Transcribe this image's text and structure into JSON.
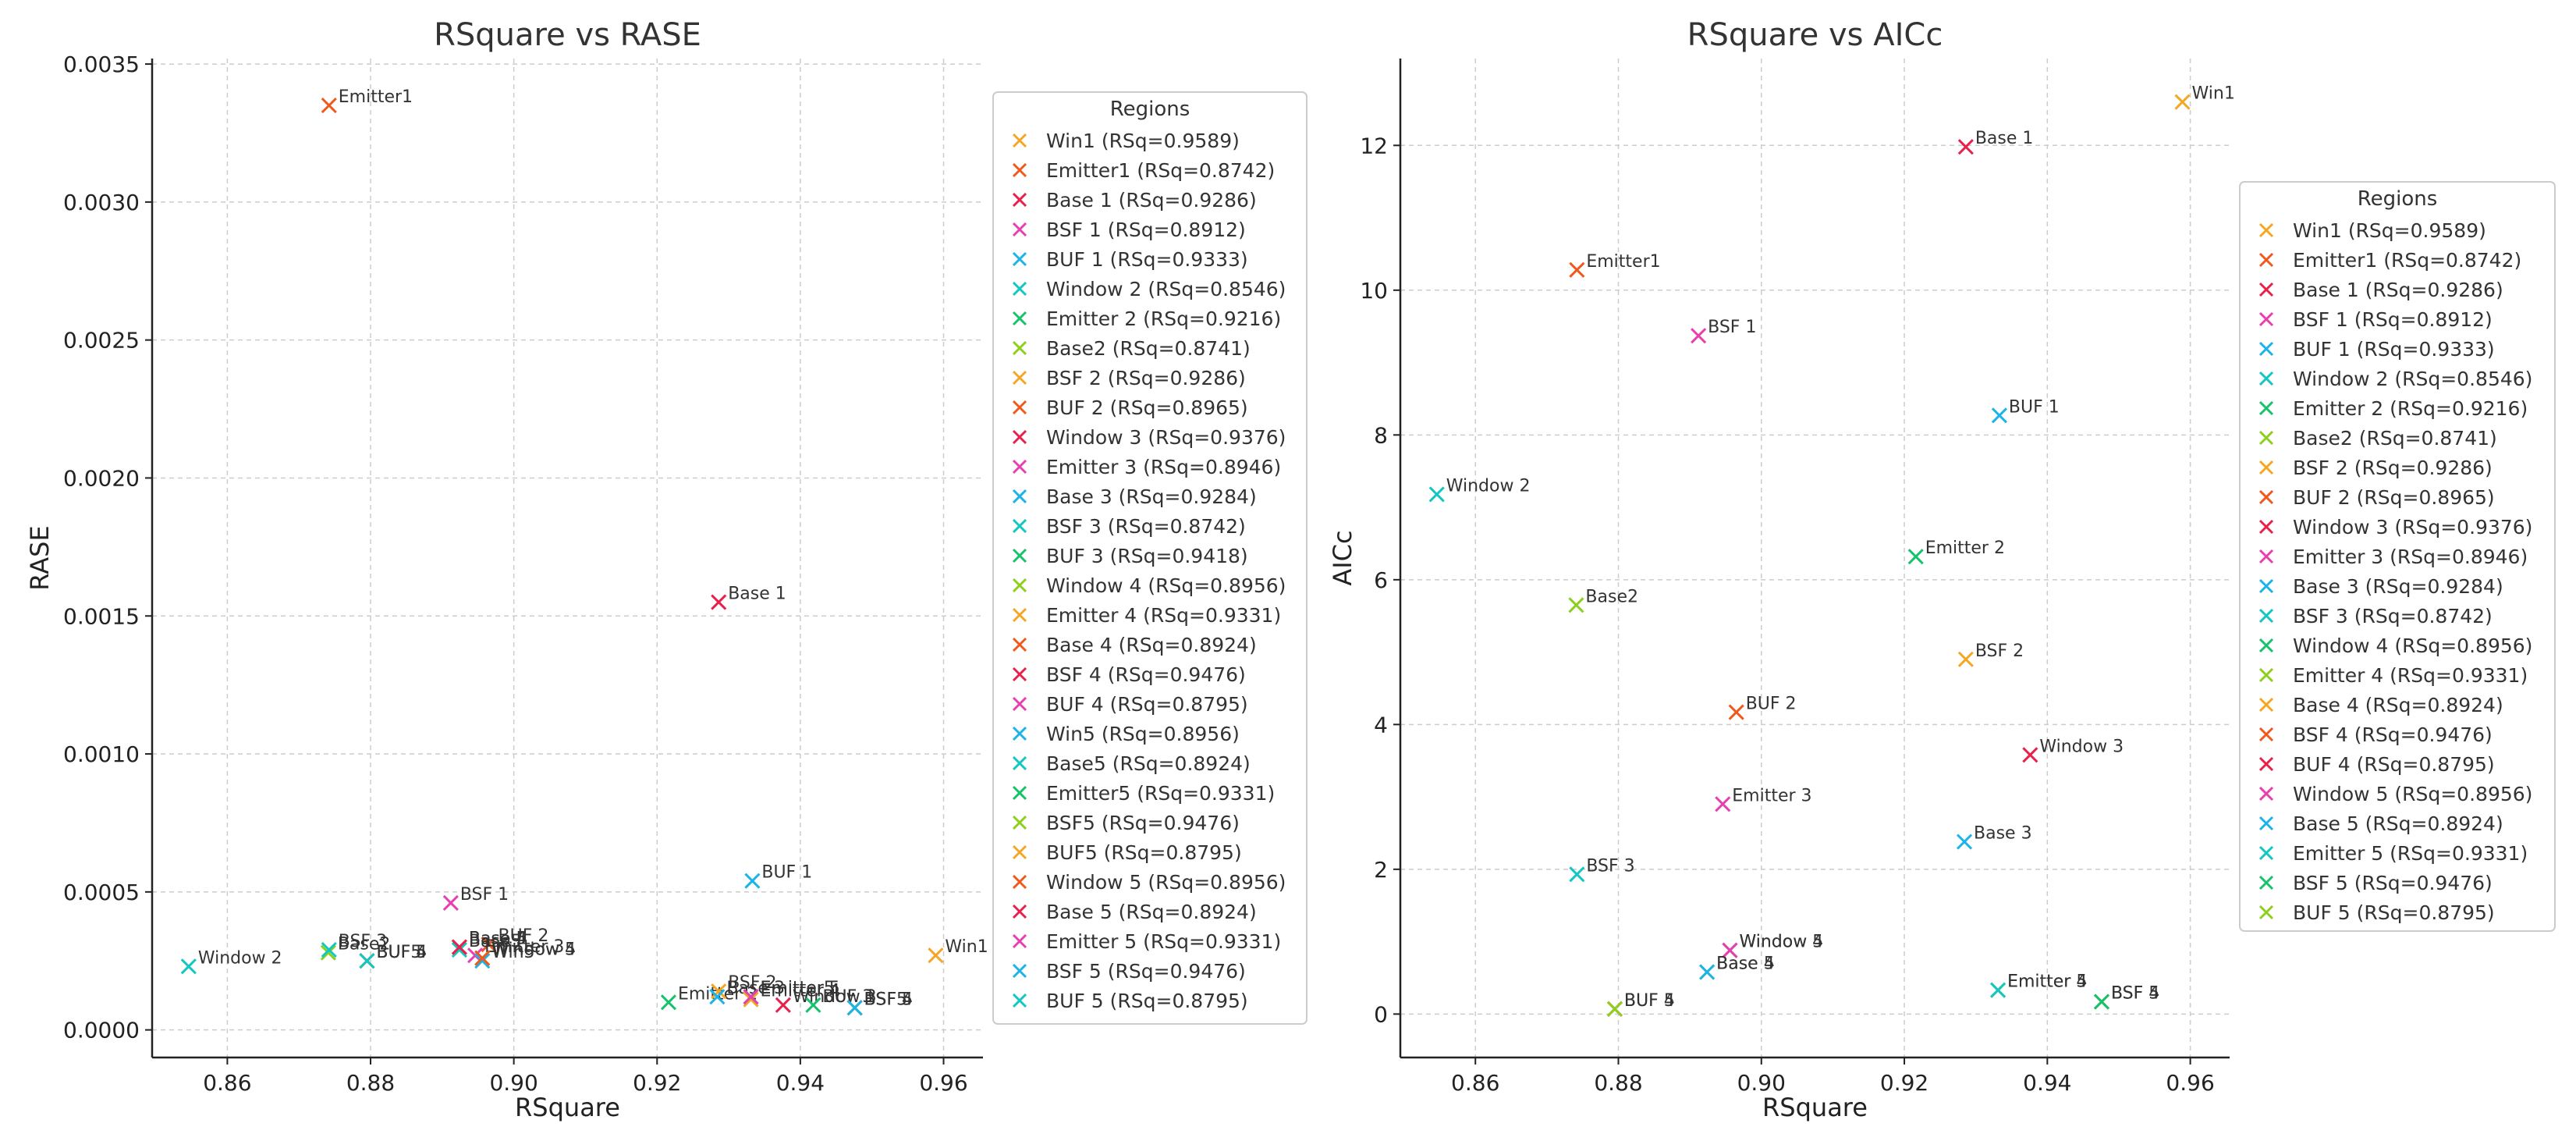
{
  "colors": [
    "#f5a623",
    "#f0581c",
    "#e8204a",
    "#e83fb0",
    "#1cb4e8",
    "#12c7c0",
    "#14c36a",
    "#8ccf1c"
  ],
  "chart_data": [
    {
      "type": "scatter",
      "title": "RSquare vs RASE",
      "xlabel": "RSquare",
      "ylabel": "RASE",
      "xlim": [
        0.8495,
        0.9655
      ],
      "ylim": [
        -0.0001,
        0.00352
      ],
      "xticks": [
        0.86,
        0.88,
        0.9,
        0.92,
        0.94,
        0.96
      ],
      "xtick_labels": [
        "0.86",
        "0.88",
        "0.90",
        "0.92",
        "0.94",
        "0.96"
      ],
      "yticks": [
        0.0,
        0.0005,
        0.001,
        0.0015,
        0.002,
        0.0025,
        0.003,
        0.0035
      ],
      "ytick_labels": [
        "0.0000",
        "0.0005",
        "0.0010",
        "0.0015",
        "0.0020",
        "0.0025",
        "0.0030",
        "0.0035"
      ],
      "grid": true,
      "legend_title": "Regions",
      "legend_position": "right",
      "points": [
        {
          "name": "Win1",
          "x": 0.9589,
          "y": 0.00027,
          "legend": "Win1 (RSq=0.9589)",
          "color": 0
        },
        {
          "name": "Emitter1",
          "x": 0.8742,
          "y": 0.00335,
          "legend": "Emitter1 (RSq=0.8742)",
          "color": 1
        },
        {
          "name": "Base 1",
          "x": 0.9286,
          "y": 0.00155,
          "legend": "Base 1 (RSq=0.9286)",
          "color": 2
        },
        {
          "name": "BSF 1",
          "x": 0.8912,
          "y": 0.00046,
          "legend": "BSF 1 (RSq=0.8912)",
          "color": 3
        },
        {
          "name": "BUF 1",
          "x": 0.9333,
          "y": 0.00054,
          "legend": "BUF 1 (RSq=0.9333)",
          "color": 4
        },
        {
          "name": "Window 2",
          "x": 0.8546,
          "y": 0.00023,
          "legend": "Window 2 (RSq=0.8546)",
          "color": 5
        },
        {
          "name": "Emitter 2",
          "x": 0.9216,
          "y": 0.0001,
          "legend": "Emitter 2 (RSq=0.9216)",
          "color": 6
        },
        {
          "name": "Base2",
          "x": 0.8741,
          "y": 0.00028,
          "legend": "Base2 (RSq=0.8741)",
          "color": 7
        },
        {
          "name": "BSF 2",
          "x": 0.9286,
          "y": 0.00014,
          "legend": "BSF 2 (RSq=0.9286)",
          "color": 0
        },
        {
          "name": "BUF 2",
          "x": 0.8965,
          "y": 0.00031,
          "legend": "BUF 2 (RSq=0.8965)",
          "color": 1
        },
        {
          "name": "Window 3",
          "x": 0.9376,
          "y": 9e-05,
          "legend": "Window 3 (RSq=0.9376)",
          "color": 2
        },
        {
          "name": "Emitter 3",
          "x": 0.8946,
          "y": 0.00027,
          "legend": "Emitter 3 (RSq=0.8946)",
          "color": 3
        },
        {
          "name": "Base 3",
          "x": 0.9284,
          "y": 0.00012,
          "legend": "Base 3 (RSq=0.9284)",
          "color": 4
        },
        {
          "name": "BSF 3",
          "x": 0.8742,
          "y": 0.00029,
          "legend": "BSF 3 (RSq=0.8742)",
          "color": 5
        },
        {
          "name": "BUF 3",
          "x": 0.9418,
          "y": 9e-05,
          "legend": "BUF 3 (RSq=0.9418)",
          "color": 6
        },
        {
          "name": "Window 4",
          "x": 0.8956,
          "y": 0.00026,
          "legend": "Window 4 (RSq=0.8956)",
          "color": 7
        },
        {
          "name": "Emitter 4",
          "x": 0.9331,
          "y": 0.00011,
          "legend": "Emitter 4 (RSq=0.9331)",
          "color": 0
        },
        {
          "name": "Base 4",
          "x": 0.8924,
          "y": 0.0003,
          "legend": "Base 4 (RSq=0.8924)",
          "color": 1
        },
        {
          "name": "BSF 4",
          "x": 0.9476,
          "y": 8e-05,
          "legend": "BSF 4 (RSq=0.9476)",
          "color": 2
        },
        {
          "name": "BUF 4",
          "x": 0.8795,
          "y": 0.00025,
          "legend": "BUF 4 (RSq=0.8795)",
          "color": 3
        },
        {
          "name": "Win5",
          "x": 0.8956,
          "y": 0.00025,
          "legend": "Win5 (RSq=0.8956)",
          "color": 4
        },
        {
          "name": "Base5",
          "x": 0.8924,
          "y": 0.00029,
          "legend": "Base5 (RSq=0.8924)",
          "color": 5
        },
        {
          "name": "Emitter5",
          "x": 0.9331,
          "y": 0.00012,
          "legend": "Emitter5 (RSq=0.9331)",
          "color": 6
        },
        {
          "name": "BSF5",
          "x": 0.9476,
          "y": 8e-05,
          "legend": "BSF5 (RSq=0.9476)",
          "color": 7
        },
        {
          "name": "BUF5",
          "x": 0.8795,
          "y": 0.00025,
          "legend": "BUF5 (RSq=0.8795)",
          "color": 0
        },
        {
          "name": "Window 5",
          "x": 0.8956,
          "y": 0.00026,
          "legend": "Window 5 (RSq=0.8956)",
          "color": 1
        },
        {
          "name": "Base 5",
          "x": 0.8924,
          "y": 0.0003,
          "legend": "Base 5 (RSq=0.8924)",
          "color": 2
        },
        {
          "name": "Emitter 5",
          "x": 0.9331,
          "y": 0.00012,
          "legend": "Emitter 5 (RSq=0.9331)",
          "color": 3
        },
        {
          "name": "BSF 5",
          "x": 0.9476,
          "y": 8e-05,
          "legend": "BSF 5 (RSq=0.9476)",
          "color": 4
        },
        {
          "name": "BUF 5",
          "x": 0.8795,
          "y": 0.00025,
          "legend": "BUF 5 (RSq=0.8795)",
          "color": 5
        }
      ]
    },
    {
      "type": "scatter",
      "title": "RSquare vs AICc",
      "xlabel": "RSquare",
      "ylabel": "AICc",
      "xlim": [
        0.8495,
        0.9655
      ],
      "ylim": [
        -0.6,
        13.2
      ],
      "xticks": [
        0.86,
        0.88,
        0.9,
        0.92,
        0.94,
        0.96
      ],
      "xtick_labels": [
        "0.86",
        "0.88",
        "0.90",
        "0.92",
        "0.94",
        "0.96"
      ],
      "yticks": [
        0,
        2,
        4,
        6,
        8,
        10,
        12
      ],
      "ytick_labels": [
        "0",
        "2",
        "4",
        "6",
        "8",
        "10",
        "12"
      ],
      "grid": true,
      "legend_title": "Regions",
      "legend_position": "right",
      "points": [
        {
          "name": "Win1",
          "x": 0.9589,
          "y": 12.6,
          "legend": "Win1 (RSq=0.9589)",
          "color": 0
        },
        {
          "name": "Emitter1",
          "x": 0.8742,
          "y": 10.28,
          "legend": "Emitter1 (RSq=0.8742)",
          "color": 1
        },
        {
          "name": "Base 1",
          "x": 0.9286,
          "y": 11.98,
          "legend": "Base 1 (RSq=0.9286)",
          "color": 2
        },
        {
          "name": "BSF 1",
          "x": 0.8912,
          "y": 9.37,
          "legend": "BSF 1 (RSq=0.8912)",
          "color": 3
        },
        {
          "name": "BUF 1",
          "x": 0.9333,
          "y": 8.27,
          "legend": "BUF 1 (RSq=0.9333)",
          "color": 4
        },
        {
          "name": "Window 2",
          "x": 0.8546,
          "y": 7.18,
          "legend": "Window 2 (RSq=0.8546)",
          "color": 5
        },
        {
          "name": "Emitter 2",
          "x": 0.9216,
          "y": 6.32,
          "legend": "Emitter 2 (RSq=0.9216)",
          "color": 6
        },
        {
          "name": "Base2",
          "x": 0.8741,
          "y": 5.65,
          "legend": "Base2 (RSq=0.8741)",
          "color": 7
        },
        {
          "name": "BSF 2",
          "x": 0.9286,
          "y": 4.9,
          "legend": "BSF 2 (RSq=0.9286)",
          "color": 0
        },
        {
          "name": "BUF 2",
          "x": 0.8965,
          "y": 4.17,
          "legend": "BUF 2 (RSq=0.8965)",
          "color": 1
        },
        {
          "name": "Window 3",
          "x": 0.9376,
          "y": 3.58,
          "legend": "Window 3 (RSq=0.9376)",
          "color": 2
        },
        {
          "name": "Emitter 3",
          "x": 0.8946,
          "y": 2.9,
          "legend": "Emitter 3 (RSq=0.8946)",
          "color": 3
        },
        {
          "name": "Base 3",
          "x": 0.9284,
          "y": 2.38,
          "legend": "Base 3 (RSq=0.9284)",
          "color": 4
        },
        {
          "name": "BSF 3",
          "x": 0.8742,
          "y": 1.93,
          "legend": "BSF 3 (RSq=0.8742)",
          "color": 5
        },
        {
          "name": "Window 4",
          "x": 0.8956,
          "y": 0.88,
          "legend": "Window 4 (RSq=0.8956)",
          "color": 6
        },
        {
          "name": "Emitter 4",
          "x": 0.9331,
          "y": 0.33,
          "legend": "Emitter 4 (RSq=0.9331)",
          "color": 7
        },
        {
          "name": "Base 4",
          "x": 0.8924,
          "y": 0.58,
          "legend": "Base 4 (RSq=0.8924)",
          "color": 0
        },
        {
          "name": "BSF 4",
          "x": 0.9476,
          "y": 0.17,
          "legend": "BSF 4 (RSq=0.9476)",
          "color": 1
        },
        {
          "name": "BUF 4",
          "x": 0.8795,
          "y": 0.07,
          "legend": "BUF 4 (RSq=0.8795)",
          "color": 2
        },
        {
          "name": "Window 5",
          "x": 0.8956,
          "y": 0.88,
          "legend": "Window 5 (RSq=0.8956)",
          "color": 3
        },
        {
          "name": "Base 5",
          "x": 0.8924,
          "y": 0.58,
          "legend": "Base 5 (RSq=0.8924)",
          "color": 4
        },
        {
          "name": "Emitter 5",
          "x": 0.9331,
          "y": 0.33,
          "legend": "Emitter 5 (RSq=0.9331)",
          "color": 5
        },
        {
          "name": "BSF 5",
          "x": 0.9476,
          "y": 0.17,
          "legend": "BSF 5 (RSq=0.9476)",
          "color": 6
        },
        {
          "name": "BUF 5",
          "x": 0.8795,
          "y": 0.07,
          "legend": "BUF 5 (RSq=0.8795)",
          "color": 7
        }
      ]
    }
  ]
}
